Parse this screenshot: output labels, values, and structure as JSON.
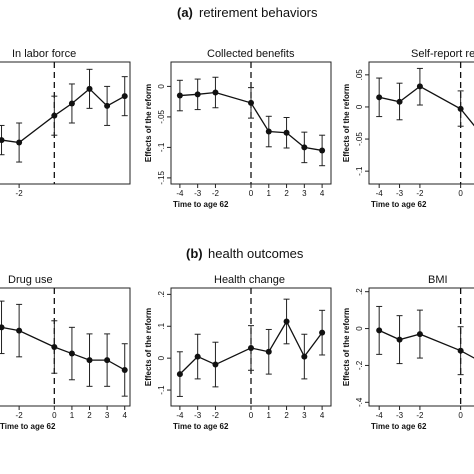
{
  "figure": {
    "section_a_letter": "(a)",
    "section_a_title": "retirement behaviors",
    "section_b_letter": "(b)",
    "section_b_title": "health outcomes"
  },
  "chart_data": [
    {
      "type": "line",
      "title": "In labor force",
      "xlabel": "",
      "ylabel": "",
      "xticks": [
        "-2"
      ],
      "yticks": [],
      "x": [
        -3,
        -2,
        0,
        1,
        2,
        3,
        4
      ],
      "y": [
        -0.07,
        -0.075,
        -0.02,
        0.005,
        0.035,
        0.0,
        0.02
      ],
      "ci_low": [
        -0.1,
        -0.115,
        -0.06,
        -0.035,
        -0.005,
        -0.04,
        -0.02
      ],
      "ci_high": [
        -0.04,
        -0.035,
        0.02,
        0.045,
        0.075,
        0.04,
        0.06
      ],
      "ylim": [
        -0.16,
        0.09
      ],
      "xlim": [
        -3.2,
        4.3
      ],
      "reference_x": 0
    },
    {
      "type": "line",
      "title": "Collected benefits",
      "xlabel": "Time to age 62",
      "ylabel": "Effects of the reform",
      "xticks": [
        "-4",
        "-3",
        "-2",
        "0",
        "1",
        "2",
        "3",
        "4"
      ],
      "yticks": [
        "0",
        "-.05",
        "-.1",
        "-.15"
      ],
      "x": [
        -4,
        -3,
        -2,
        0,
        1,
        2,
        3,
        4
      ],
      "y": [
        -0.015,
        -0.013,
        -0.01,
        -0.027,
        -0.074,
        -0.076,
        -0.1,
        -0.105
      ],
      "ci_low": [
        -0.04,
        -0.038,
        -0.035,
        -0.052,
        -0.099,
        -0.101,
        -0.125,
        -0.13
      ],
      "ci_high": [
        0.01,
        0.012,
        0.015,
        -0.002,
        -0.049,
        -0.051,
        -0.075,
        -0.08
      ],
      "ylim": [
        -0.16,
        0.04
      ],
      "xlim": [
        -4.5,
        4.5
      ],
      "reference_x": 0
    },
    {
      "type": "line",
      "title": "Self-report re",
      "xlabel": "Time to age 62",
      "ylabel": "Effects of the reform",
      "xticks": [
        "-4",
        "-3",
        "-2",
        "0",
        "1"
      ],
      "yticks": [
        ".05",
        "0",
        "-.05",
        "-.1"
      ],
      "x": [
        -4,
        -3,
        -2,
        0,
        1
      ],
      "y": [
        0.015,
        0.008,
        0.032,
        -0.003,
        -0.042
      ],
      "ci_low": [
        -0.015,
        -0.02,
        0.003,
        -0.03,
        -0.07
      ],
      "ci_high": [
        0.045,
        0.037,
        0.06,
        0.025,
        -0.014
      ],
      "ylim": [
        -0.12,
        0.07
      ],
      "xlim": [
        -4.5,
        1.0
      ],
      "reference_x": 0
    },
    {
      "type": "line",
      "title": "Drug use",
      "xlabel": "Time to age 62",
      "ylabel": "",
      "xticks": [
        "-2",
        "0",
        "1",
        "2",
        "3",
        "4"
      ],
      "yticks": [],
      "x": [
        -3,
        -2,
        0,
        1,
        2,
        3,
        4
      ],
      "y": [
        0.03,
        0.025,
        0.0,
        -0.01,
        -0.02,
        -0.02,
        -0.035
      ],
      "ci_low": [
        -0.01,
        -0.015,
        -0.04,
        -0.05,
        -0.06,
        -0.06,
        -0.075
      ],
      "ci_high": [
        0.07,
        0.065,
        0.04,
        0.03,
        0.02,
        0.02,
        0.005
      ],
      "ylim": [
        -0.09,
        0.09
      ],
      "xlim": [
        -3.2,
        4.3
      ],
      "reference_x": 0
    },
    {
      "type": "line",
      "title": "Health change",
      "xlabel": "Time to age 62",
      "ylabel": "Effects of the reform",
      "xticks": [
        "-4",
        "-3",
        "-2",
        "0",
        "1",
        "2",
        "3",
        "4"
      ],
      "yticks": [
        ".2",
        ".1",
        "0",
        "-.1"
      ],
      "x": [
        -4,
        -3,
        -2,
        0,
        1,
        2,
        3,
        4
      ],
      "y": [
        -0.05,
        0.005,
        -0.02,
        0.032,
        0.02,
        0.115,
        0.005,
        0.08
      ],
      "ci_low": [
        -0.12,
        -0.065,
        -0.09,
        -0.038,
        -0.05,
        0.045,
        -0.065,
        0.01
      ],
      "ci_high": [
        0.02,
        0.075,
        0.05,
        0.102,
        0.09,
        0.185,
        0.075,
        0.15
      ],
      "ylim": [
        -0.15,
        0.22
      ],
      "xlim": [
        -4.5,
        4.5
      ],
      "reference_x": 0
    },
    {
      "type": "line",
      "title": "BMI",
      "xlabel": "Time to age 62",
      "ylabel": "Effects of the reform",
      "xticks": [
        "-4",
        "-3",
        "-2",
        "0",
        "1"
      ],
      "yticks": [
        ".2",
        "0",
        "-.2",
        "-.4"
      ],
      "x": [
        -4,
        -3,
        -2,
        0,
        1
      ],
      "y": [
        -0.01,
        -0.06,
        -0.03,
        -0.12,
        -0.18
      ],
      "ci_low": [
        -0.14,
        -0.19,
        -0.16,
        -0.25,
        -0.31
      ],
      "ci_high": [
        0.12,
        0.07,
        0.1,
        0.01,
        -0.05
      ],
      "ylim": [
        -0.42,
        0.22
      ],
      "xlim": [
        -4.5,
        1.0
      ],
      "reference_x": 0
    }
  ]
}
